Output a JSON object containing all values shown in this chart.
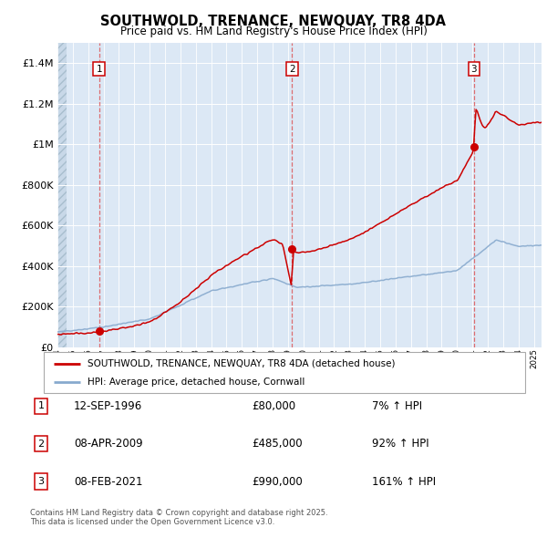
{
  "title": "SOUTHWOLD, TRENANCE, NEWQUAY, TR8 4DA",
  "subtitle": "Price paid vs. HM Land Registry's House Price Index (HPI)",
  "ylim": [
    0,
    1500000
  ],
  "yticks": [
    0,
    200000,
    400000,
    600000,
    800000,
    1000000,
    1200000,
    1400000
  ],
  "xstart": 1994,
  "xend": 2025,
  "sale_dates": [
    1996.71,
    2009.27,
    2021.1
  ],
  "sale_prices": [
    80000,
    485000,
    990000
  ],
  "sale_labels": [
    "1",
    "2",
    "3"
  ],
  "sale_pct": [
    "7% ↑ HPI",
    "92% ↑ HPI",
    "161% ↑ HPI"
  ],
  "sale_price_labels": [
    "£80,000",
    "£485,000",
    "£990,000"
  ],
  "sale_date_labels": [
    "12-SEP-1996",
    "08-APR-2009",
    "08-FEB-2021"
  ],
  "legend_line1": "SOUTHWOLD, TRENANCE, NEWQUAY, TR8 4DA (detached house)",
  "legend_line2": "HPI: Average price, detached house, Cornwall",
  "footer": "Contains HM Land Registry data © Crown copyright and database right 2025.\nThis data is licensed under the Open Government Licence v3.0.",
  "red_color": "#cc0000",
  "blue_color": "#88aace",
  "plot_bg": "#dce8f5",
  "hatch_bg": "#c8d8e8"
}
